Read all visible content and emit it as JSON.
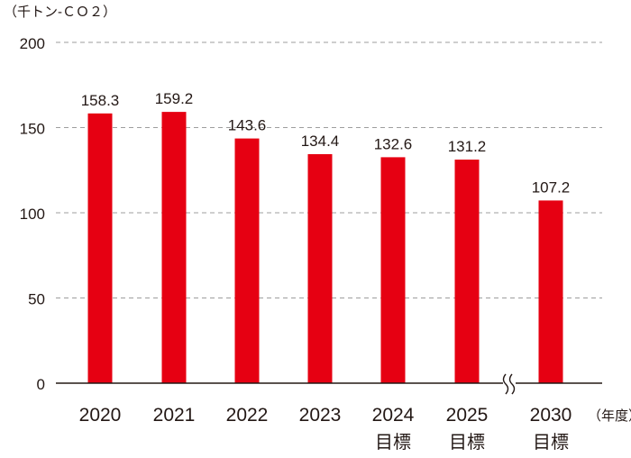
{
  "chart_data": {
    "type": "bar",
    "title": "",
    "ylabel": "（千トン-ＣＯ２）",
    "xlabel": "（年度）",
    "ylim": [
      0,
      200
    ],
    "yticks": [
      "0",
      "50",
      "100",
      "150",
      "200"
    ],
    "grid": true,
    "axis_break": "between 2025目標 and 2030目標",
    "categories": [
      {
        "year": "2020",
        "suffix": ""
      },
      {
        "year": "2021",
        "suffix": ""
      },
      {
        "year": "2022",
        "suffix": ""
      },
      {
        "year": "2023",
        "suffix": ""
      },
      {
        "year": "2024",
        "suffix": "目標"
      },
      {
        "year": "2025",
        "suffix": "目標"
      },
      {
        "year": "2030",
        "suffix": "目標"
      }
    ],
    "values": [
      158.3,
      159.2,
      143.6,
      134.4,
      132.6,
      131.2,
      107.2
    ],
    "value_labels": [
      "158.3",
      "159.2",
      "143.6",
      "134.4",
      "132.6",
      "131.2",
      "107.2"
    ],
    "bar_color": "#e60012",
    "grid_color": "#9e9e9e",
    "axis_color": "#231815"
  }
}
